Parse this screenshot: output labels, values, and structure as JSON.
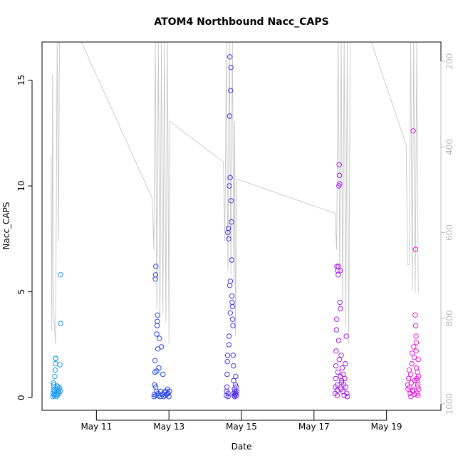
{
  "chart_data": {
    "type": "scatter",
    "title": "ATOM4 Northbound Nacc_CAPS",
    "xlabel": "Date",
    "ylabel": "Nacc_CAPS",
    "xlim": [
      "2016-05-09T12:00",
      "2016-05-20T12:00"
    ],
    "ylim": [
      -0.6,
      16.8
    ],
    "x_ticks": [
      {
        "x": "2016-05-11",
        "label": "May 11"
      },
      {
        "x": "2016-05-13",
        "label": "May 13"
      },
      {
        "x": "2016-05-15",
        "label": "May 15"
      },
      {
        "x": "2016-05-17",
        "label": "May 17"
      },
      {
        "x": "2016-05-19",
        "label": "May 19"
      }
    ],
    "y_ticks": [
      0,
      5,
      10,
      15
    ],
    "right_axis": {
      "label": "",
      "reversed": true,
      "lim": [
        1015,
        155
      ],
      "ticks": [
        200,
        400,
        600,
        800,
        1000
      ],
      "tick_color": "#bbbbbb",
      "line_color": "#c8c8c8"
    },
    "grid": false,
    "legend": "none",
    "color_gradient": [
      "#1e9cf0",
      "#2a3ce6",
      "#7a22e8",
      "#ee18e0"
    ],
    "series": [
      {
        "points": [
          [
            "2016-05-09T19:10",
            0.05
          ],
          [
            "2016-05-09T19:20",
            0.2
          ],
          [
            "2016-05-09T19:30",
            0.35
          ],
          [
            "2016-05-09T19:40",
            0.5
          ],
          [
            "2016-05-09T19:50",
            0.6
          ],
          [
            "2016-05-09T20:00",
            0.1
          ],
          [
            "2016-05-09T20:15",
            0.3
          ],
          [
            "2016-05-09T20:30",
            1.0
          ],
          [
            "2016-05-09T20:40",
            1.3
          ],
          [
            "2016-05-09T20:50",
            1.6
          ],
          [
            "2016-05-09T21:00",
            1.85
          ],
          [
            "2016-05-09T21:10",
            1.85
          ],
          [
            "2016-05-09T21:20",
            0.15
          ],
          [
            "2016-05-09T21:40",
            0.4
          ],
          [
            "2016-05-09T22:00",
            0.55
          ],
          [
            "2016-05-09T22:20",
            0.25
          ],
          [
            "2016-05-09T22:40",
            0.5
          ],
          [
            "2016-05-09T23:00",
            0.35
          ],
          [
            "2016-05-09T23:20",
            0.2
          ],
          [
            "2016-05-09T23:40",
            0.45
          ],
          [
            "2016-05-09T23:50",
            1.55
          ],
          [
            "2016-05-10T00:00",
            0.3
          ],
          [
            "2016-05-10T00:10",
            5.8
          ],
          [
            "2016-05-10T00:20",
            3.5
          ],
          [
            "2016-05-09T19:30",
            0.7
          ],
          [
            "2016-05-09T20:10",
            0.15
          ],
          [
            "2016-05-09T21:30",
            0.05
          ],
          [
            "2016-05-09T22:10",
            0.12
          ],
          [
            "2016-05-12T14:10",
            0.05
          ],
          [
            "2016-05-12T14:20",
            0.15
          ],
          [
            "2016-05-12T14:30",
            0.6
          ],
          [
            "2016-05-12T14:40",
            1.2
          ],
          [
            "2016-05-12T14:50",
            1.75
          ],
          [
            "2016-05-12T15:00",
            5.6
          ],
          [
            "2016-05-12T15:10",
            5.8
          ],
          [
            "2016-05-12T15:20",
            6.2
          ],
          [
            "2016-05-12T15:30",
            0.1
          ],
          [
            "2016-05-12T15:40",
            0.3
          ],
          [
            "2016-05-12T15:50",
            1.25
          ],
          [
            "2016-05-12T16:00",
            3.0
          ],
          [
            "2016-05-12T16:10",
            3.4
          ],
          [
            "2016-05-12T16:20",
            3.6
          ],
          [
            "2016-05-12T16:30",
            3.9
          ],
          [
            "2016-05-12T16:40",
            2.3
          ],
          [
            "2016-05-12T16:50",
            0.2
          ],
          [
            "2016-05-12T17:00",
            0.1
          ],
          [
            "2016-05-12T17:20",
            1.4
          ],
          [
            "2016-05-12T17:40",
            2.8
          ],
          [
            "2016-05-12T18:00",
            0.05
          ],
          [
            "2016-05-12T18:30",
            0.3
          ],
          [
            "2016-05-12T19:00",
            2.4
          ],
          [
            "2016-05-12T19:30",
            0.15
          ],
          [
            "2016-05-12T20:00",
            1.1
          ],
          [
            "2016-05-12T20:30",
            0.05
          ],
          [
            "2016-05-12T21:00",
            0.25
          ],
          [
            "2016-05-12T21:30",
            0.1
          ],
          [
            "2016-05-12T22:00",
            0.3
          ],
          [
            "2016-05-12T22:30",
            0.15
          ],
          [
            "2016-05-12T23:00",
            0.4
          ],
          [
            "2016-05-12T23:30",
            0.2
          ],
          [
            "2016-05-13T00:00",
            0.05
          ],
          [
            "2016-05-13T00:20",
            0.3
          ],
          [
            "2016-05-12T15:15",
            0.5
          ],
          [
            "2016-05-14T14:00",
            0.1
          ],
          [
            "2016-05-14T14:10",
            0.3
          ],
          [
            "2016-05-14T14:20",
            0.5
          ],
          [
            "2016-05-14T14:30",
            1.1
          ],
          [
            "2016-05-14T14:40",
            1.7
          ],
          [
            "2016-05-14T14:50",
            2.0
          ],
          [
            "2016-05-14T15:00",
            7.8
          ],
          [
            "2016-05-14T15:10",
            0.05
          ],
          [
            "2016-05-14T15:20",
            8.0
          ],
          [
            "2016-05-14T15:30",
            7.5
          ],
          [
            "2016-05-14T15:40",
            2.5
          ],
          [
            "2016-05-14T15:50",
            2.9
          ],
          [
            "2016-05-14T16:00",
            10.0
          ],
          [
            "2016-05-14T16:10",
            13.3
          ],
          [
            "2016-05-14T16:20",
            16.1
          ],
          [
            "2016-05-14T16:30",
            10.4
          ],
          [
            "2016-05-14T16:40",
            5.5
          ],
          [
            "2016-05-14T16:50",
            14.5
          ],
          [
            "2016-05-14T17:00",
            15.6
          ],
          [
            "2016-05-14T17:10",
            9.3
          ],
          [
            "2016-05-14T17:20",
            8.3
          ],
          [
            "2016-05-14T17:30",
            6.5
          ],
          [
            "2016-05-14T17:40",
            4.8
          ],
          [
            "2016-05-14T17:50",
            4.5
          ],
          [
            "2016-05-14T18:00",
            4.3
          ],
          [
            "2016-05-14T18:10",
            3.7
          ],
          [
            "2016-05-14T18:20",
            3.4
          ],
          [
            "2016-05-14T18:30",
            2.0
          ],
          [
            "2016-05-14T18:40",
            1.5
          ],
          [
            "2016-05-14T18:50",
            0.8
          ],
          [
            "2016-05-14T19:00",
            0.2
          ],
          [
            "2016-05-14T19:10",
            0.1
          ],
          [
            "2016-05-14T19:20",
            0.4
          ],
          [
            "2016-05-14T19:30",
            0.05
          ],
          [
            "2016-05-14T19:40",
            0.3
          ],
          [
            "2016-05-14T19:50",
            0.15
          ],
          [
            "2016-05-14T20:00",
            0.6
          ],
          [
            "2016-05-14T20:10",
            1.0
          ],
          [
            "2016-05-14T20:20",
            0.2
          ],
          [
            "2016-05-14T20:30",
            0.5
          ],
          [
            "2016-05-14T20:40",
            0.1
          ],
          [
            "2016-05-14T20:50",
            0.3
          ],
          [
            "2016-05-14T16:35",
            4.0
          ],
          [
            "2016-05-14T16:15",
            5.3
          ],
          [
            "2016-05-14T15:05",
            0.2
          ],
          [
            "2016-05-17T14:00",
            0.2
          ],
          [
            "2016-05-17T14:10",
            0.5
          ],
          [
            "2016-05-17T14:20",
            0.9
          ],
          [
            "2016-05-17T14:30",
            1.5
          ],
          [
            "2016-05-17T14:40",
            2.2
          ],
          [
            "2016-05-17T14:50",
            3.2
          ],
          [
            "2016-05-17T15:00",
            3.7
          ],
          [
            "2016-05-17T15:10",
            6.2
          ],
          [
            "2016-05-17T15:20",
            0.1
          ],
          [
            "2016-05-17T15:30",
            0.6
          ],
          [
            "2016-05-17T15:40",
            6.0
          ],
          [
            "2016-05-17T15:50",
            1.2
          ],
          [
            "2016-05-17T16:00",
            5.8
          ],
          [
            "2016-05-17T16:10",
            6.2
          ],
          [
            "2016-05-17T16:20",
            2.7
          ],
          [
            "2016-05-17T16:30",
            10.0
          ],
          [
            "2016-05-17T16:40",
            11.0
          ],
          [
            "2016-05-17T16:50",
            10.5
          ],
          [
            "2016-05-17T17:00",
            10.1
          ],
          [
            "2016-05-17T17:10",
            4.5
          ],
          [
            "2016-05-17T17:20",
            6.0
          ],
          [
            "2016-05-17T17:30",
            4.2
          ],
          [
            "2016-05-17T17:40",
            1.0
          ],
          [
            "2016-05-17T17:50",
            0.4
          ],
          [
            "2016-05-17T18:00",
            2.0
          ],
          [
            "2016-05-17T18:20",
            0.8
          ],
          [
            "2016-05-17T18:40",
            1.4
          ],
          [
            "2016-05-17T19:00",
            0.3
          ],
          [
            "2016-05-17T19:20",
            1.1
          ],
          [
            "2016-05-17T19:40",
            0.6
          ],
          [
            "2016-05-17T20:00",
            0.1
          ],
          [
            "2016-05-17T20:20",
            0.9
          ],
          [
            "2016-05-17T20:40",
            1.6
          ],
          [
            "2016-05-17T21:00",
            0.5
          ],
          [
            "2016-05-17T21:20",
            2.9
          ],
          [
            "2016-05-17T21:40",
            0.2
          ],
          [
            "2016-05-17T22:00",
            0.05
          ],
          [
            "2016-05-17T15:25",
            0.35
          ],
          [
            "2016-05-17T16:45",
            1.8
          ],
          [
            "2016-05-17T18:10",
            0.7
          ],
          [
            "2016-05-19T14:00",
            0.6
          ],
          [
            "2016-05-19T14:20",
            0.4
          ],
          [
            "2016-05-19T14:40",
            0.9
          ],
          [
            "2016-05-19T15:00",
            1.3
          ],
          [
            "2016-05-19T15:20",
            0.5
          ],
          [
            "2016-05-19T15:40",
            0.2
          ],
          [
            "2016-05-19T16:00",
            1.1
          ],
          [
            "2016-05-19T16:20",
            0.7
          ],
          [
            "2016-05-19T16:40",
            1.6
          ],
          [
            "2016-05-19T17:00",
            2.1
          ],
          [
            "2016-05-19T17:20",
            0.3
          ],
          [
            "2016-05-19T17:40",
            12.6
          ],
          [
            "2016-05-19T18:00",
            2.4
          ],
          [
            "2016-05-19T18:20",
            1.9
          ],
          [
            "2016-05-19T18:40",
            0.8
          ],
          [
            "2016-05-19T19:00",
            3.9
          ],
          [
            "2016-05-19T19:10",
            7.0
          ],
          [
            "2016-05-19T19:20",
            3.4
          ],
          [
            "2016-05-19T19:30",
            2.9
          ],
          [
            "2016-05-19T19:40",
            2.6
          ],
          [
            "2016-05-19T19:50",
            1.4
          ],
          [
            "2016-05-19T20:00",
            0.9
          ],
          [
            "2016-05-19T20:10",
            0.2
          ],
          [
            "2016-05-19T20:20",
            0.5
          ],
          [
            "2016-05-19T20:30",
            1.2
          ],
          [
            "2016-05-19T20:40",
            0.6
          ],
          [
            "2016-05-19T20:50",
            0.1
          ],
          [
            "2016-05-19T21:00",
            1.8
          ],
          [
            "2016-05-19T21:10",
            1.0
          ],
          [
            "2016-05-19T21:20",
            0.4
          ],
          [
            "2016-05-19T16:10",
            0.05
          ],
          [
            "2016-05-19T17:10",
            0.35
          ],
          [
            "2016-05-19T18:30",
            0.15
          ],
          [
            "2016-05-19T19:35",
            2.2
          ],
          [
            "2016-05-19T20:15",
            0.8
          ]
        ]
      }
    ],
    "overlay_line": {
      "axis": "right",
      "color": "#c8c8c8",
      "points": [
        [
          "2016-05-09T18:00",
          420
        ],
        [
          "2016-05-09T18:30",
          830
        ],
        [
          "2016-05-09T19:00",
          230
        ],
        [
          "2016-05-09T19:20",
          680
        ],
        [
          "2016-05-09T20:00",
          810
        ],
        [
          "2016-05-09T21:00",
          860
        ],
        [
          "2016-05-09T22:00",
          155
        ],
        [
          "2016-05-09T23:00",
          620
        ],
        [
          "2016-05-09T23:30",
          155
        ],
        [
          "2016-05-10T00:30",
          155
        ],
        [
          "2016-05-10T14:00",
          155
        ],
        [
          "2016-05-12T13:00",
          520
        ],
        [
          "2016-05-12T14:00",
          640
        ],
        [
          "2016-05-12T15:00",
          155
        ],
        [
          "2016-05-12T16:00",
          780
        ],
        [
          "2016-05-12T17:00",
          155
        ],
        [
          "2016-05-12T18:00",
          800
        ],
        [
          "2016-05-12T19:00",
          155
        ],
        [
          "2016-05-12T20:00",
          790
        ],
        [
          "2016-05-12T21:00",
          155
        ],
        [
          "2016-05-12T22:00",
          810
        ],
        [
          "2016-05-12T23:00",
          155
        ],
        [
          "2016-05-13T00:00",
          860
        ],
        [
          "2016-05-13T00:30",
          340
        ],
        [
          "2016-05-14T12:00",
          435
        ],
        [
          "2016-05-14T13:00",
          620
        ],
        [
          "2016-05-14T14:00",
          155
        ],
        [
          "2016-05-14T15:00",
          690
        ],
        [
          "2016-05-14T16:00",
          155
        ],
        [
          "2016-05-14T17:00",
          700
        ],
        [
          "2016-05-14T18:00",
          155
        ],
        [
          "2016-05-14T19:00",
          720
        ],
        [
          "2016-05-14T19:30",
          340
        ],
        [
          "2016-05-14T20:00",
          840
        ],
        [
          "2016-05-14T21:00",
          475
        ],
        [
          "2016-05-17T14:00",
          555
        ],
        [
          "2016-05-17T15:00",
          640
        ],
        [
          "2016-05-17T16:00",
          155
        ],
        [
          "2016-05-17T17:00",
          680
        ],
        [
          "2016-05-17T18:00",
          155
        ],
        [
          "2016-05-17T19:00",
          760
        ],
        [
          "2016-05-17T20:00",
          155
        ],
        [
          "2016-05-17T21:00",
          820
        ],
        [
          "2016-05-17T22:00",
          155
        ],
        [
          "2016-05-17T23:00",
          860
        ],
        [
          "2016-05-18T00:00",
          155
        ],
        [
          "2016-05-18T14:00",
          155
        ],
        [
          "2016-05-19T13:00",
          395
        ],
        [
          "2016-05-19T14:00",
          675
        ],
        [
          "2016-05-19T15:00",
          675
        ],
        [
          "2016-05-19T16:00",
          155
        ],
        [
          "2016-05-19T17:00",
          735
        ],
        [
          "2016-05-19T18:00",
          155
        ],
        [
          "2016-05-19T19:00",
          740
        ],
        [
          "2016-05-19T20:00",
          155
        ],
        [
          "2016-05-19T21:00",
          740
        ]
      ]
    }
  }
}
